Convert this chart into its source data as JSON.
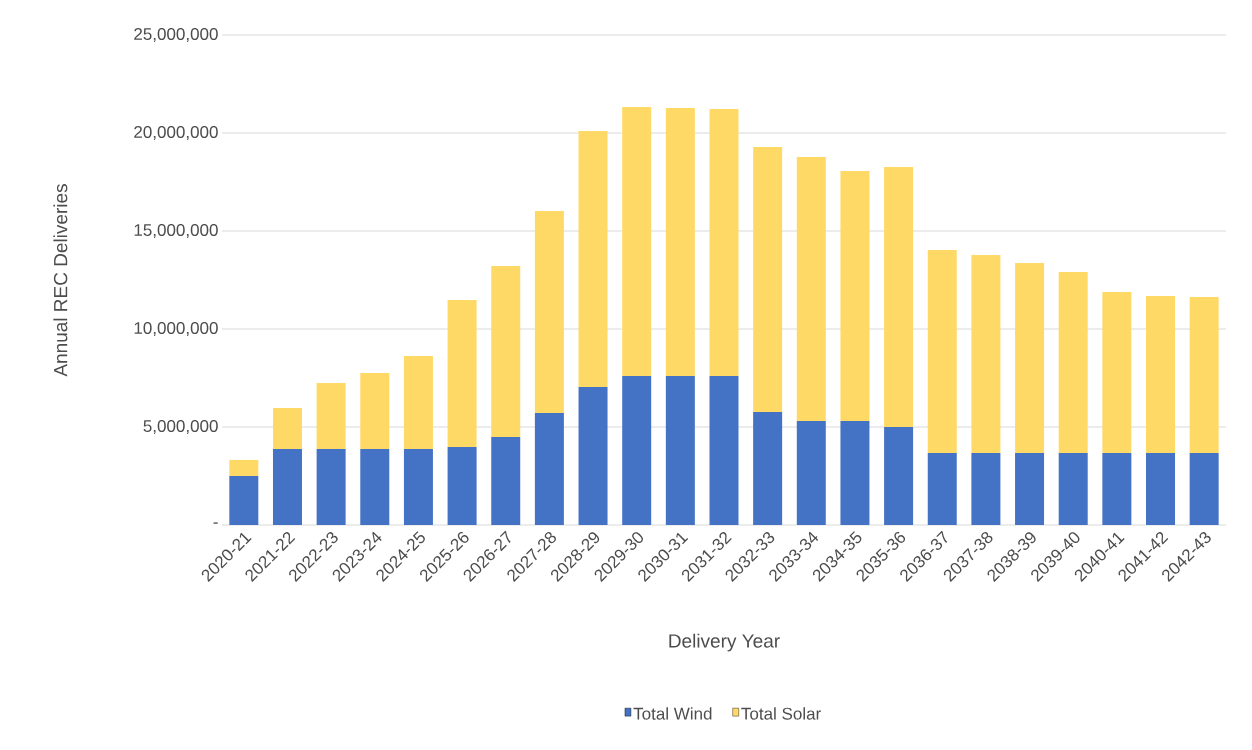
{
  "chart_data": {
    "type": "bar",
    "stacked": true,
    "xlabel": "Delivery Year",
    "ylabel": "Annual REC Deliveries",
    "categories": [
      "2020-21",
      "2021-22",
      "2022-23",
      "2023-24",
      "2024-25",
      "2025-26",
      "2026-27",
      "2027-28",
      "2028-29",
      "2029-30",
      "2030-31",
      "2031-32",
      "2032-33",
      "2033-34",
      "2034-35",
      "2035-36",
      "2036-37",
      "2037-38",
      "2038-39",
      "2039-40",
      "2040-41",
      "2041-42",
      "2042-43"
    ],
    "series": [
      {
        "name": "Total Wind",
        "color": "#4472c4",
        "values": [
          2500000,
          3880000,
          3880000,
          3880000,
          3880000,
          3980000,
          4490000,
          5710000,
          7040000,
          7600000,
          7600000,
          7600000,
          5770000,
          5310000,
          5310000,
          5000000,
          3670000,
          3670000,
          3670000,
          3670000,
          3670000,
          3670000,
          3670000
        ]
      },
      {
        "name": "Total Solar",
        "color": "#ffd966",
        "values": [
          820000,
          2090000,
          3360000,
          3880000,
          4740000,
          7500000,
          8720000,
          10310000,
          13060000,
          13730000,
          13680000,
          13620000,
          13520000,
          13470000,
          12750000,
          13270000,
          10360000,
          10110000,
          9700000,
          9240000,
          8220000,
          8010000,
          7960000
        ]
      }
    ],
    "ylim": [
      0,
      25000000
    ],
    "yticks": [
      {
        "value": 0,
        "label": "-"
      },
      {
        "value": 5000000,
        "label": "5,000,000"
      },
      {
        "value": 10000000,
        "label": "10,000,000"
      },
      {
        "value": 15000000,
        "label": "15,000,000"
      },
      {
        "value": 20000000,
        "label": "20,000,000"
      },
      {
        "value": 25000000,
        "label": "25,000,000"
      }
    ],
    "grid": "y",
    "legend": "bottom"
  }
}
